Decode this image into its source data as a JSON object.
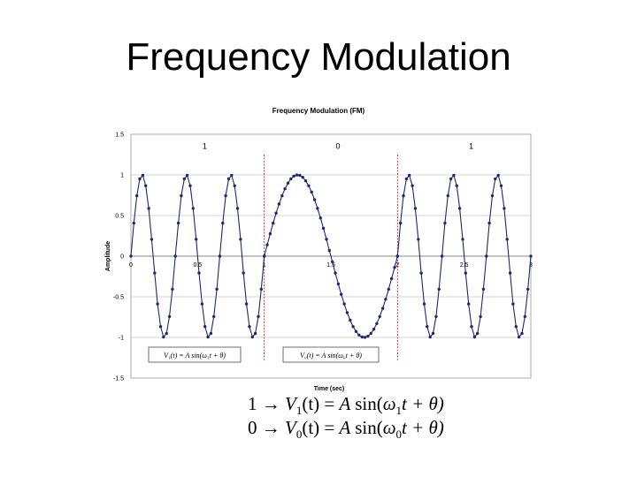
{
  "slide": {
    "title": "Frequency Modulation"
  },
  "chart_data": {
    "type": "line",
    "title": "Frequency Modulation (FM)",
    "xlabel": "Time (sec)",
    "ylabel": "Amplitude",
    "xlim": [
      0,
      3
    ],
    "ylim": [
      -1.5,
      1.5
    ],
    "x_ticks": [
      "0",
      "0.5",
      "1",
      "1.5",
      "2",
      "2.5",
      "3"
    ],
    "y_ticks": [
      "1.5",
      "1",
      "0.5",
      "0",
      "-0.5",
      "-1",
      "-1.5"
    ],
    "grid": true,
    "segments": [
      {
        "label": "1",
        "x_start": 0,
        "x_end": 1,
        "cycles": 3
      },
      {
        "label": "0",
        "x_start": 1,
        "x_end": 2,
        "cycles": 1
      },
      {
        "label": "1",
        "x_start": 2,
        "x_end": 3,
        "cycles": 3
      }
    ],
    "boundaries": [
      1,
      2
    ],
    "samples_per_unit": 45,
    "line_color": "#1f2a6e",
    "boundary_color": "#d02020",
    "grid_color": "#c8c8c8",
    "legend_equations": [
      "V₁(t) = A sin(ω₁t + θ)",
      "V₀(t) = A sin(ω₀t + θ)"
    ]
  },
  "formulas": [
    {
      "bit": "1",
      "arrow": "→",
      "lhs_var": "V",
      "lhs_sub": "1",
      "lhs_arg": "(t) = ",
      "amp": "A",
      "fn": "sin",
      "omega": "ω",
      "omega_sub": "1",
      "rest": "t + θ)"
    },
    {
      "bit": "0",
      "arrow": "→",
      "lhs_var": "V",
      "lhs_sub": "0",
      "lhs_arg": "(t) = ",
      "amp": "A",
      "fn": "sin",
      "omega": "ω",
      "omega_sub": "0",
      "rest": "t + θ)"
    }
  ]
}
